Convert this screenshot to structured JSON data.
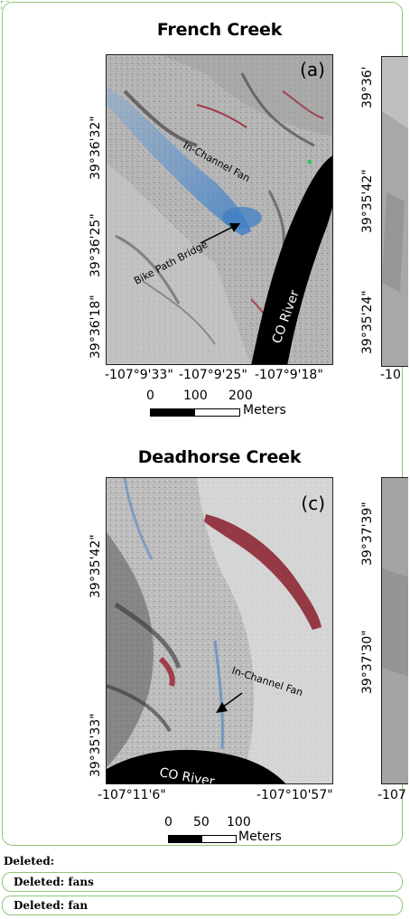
{
  "panels": [
    {
      "title": "French Creek",
      "letter": "(a)",
      "lat_labels": [
        "39°36'32\"",
        "39°36'25\"",
        "39°36'18\""
      ],
      "lon_labels": [
        "-107°9'33\"",
        "-107°9'25\"",
        "-107°9'18\""
      ],
      "annotations": [
        "In-Channel Fan",
        "Bike Path Bridge",
        "CO River"
      ],
      "scale_ticks": [
        "0",
        "100",
        "200"
      ],
      "scale_units": "Meters"
    },
    {
      "title": "Deadhorse Creek",
      "letter": "(c)",
      "lat_labels": [
        "39°35'42\"",
        "39°35'33\""
      ],
      "lon_labels": [
        "-107°11'6\"",
        "-107°10'57\""
      ],
      "annotations": [
        "In-Channel Fan",
        "CO River"
      ],
      "scale_ticks": [
        "0",
        "50",
        "100"
      ],
      "scale_units": "Meters"
    }
  ],
  "right_partial": {
    "lat_labels_top": [
      "39°36'",
      "39°35'42\"",
      "39°35'24\""
    ],
    "lon_label_top": "-10",
    "lat_labels_bottom": [
      "39°37'39\"",
      "39°37'30\""
    ],
    "lon_label_bottom": "-107"
  },
  "deleted": [
    "Deleted:",
    "Deleted: fans",
    "Deleted: fan"
  ],
  "colors": {
    "frame": "#8fc57a",
    "river": "#000000",
    "fan_blue": "#3f7fc4",
    "erosion_red": "#9b1b2a"
  }
}
